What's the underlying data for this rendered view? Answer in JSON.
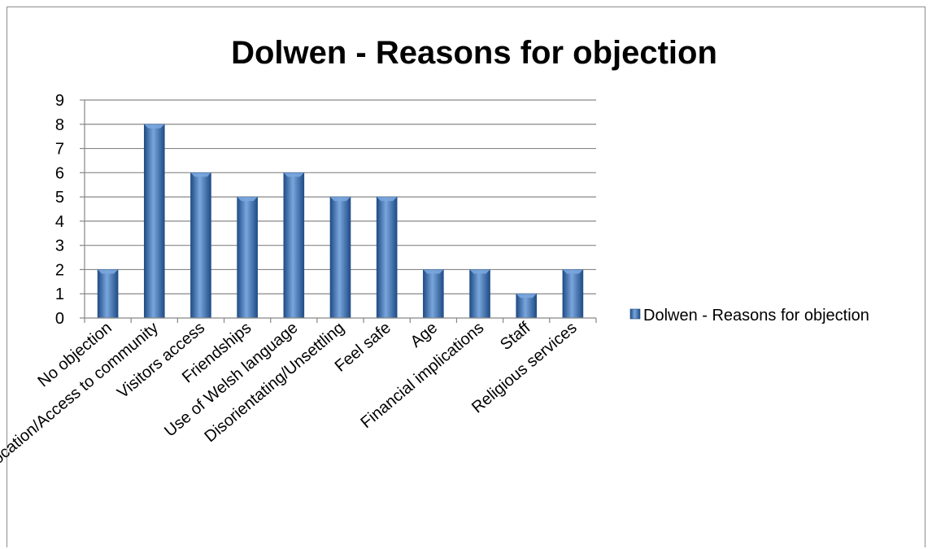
{
  "chart_data": {
    "type": "bar",
    "title": "Dolwen - Reasons for objection",
    "xlabel": "",
    "ylabel": "",
    "categories": [
      "No objection",
      "Location/Access to community",
      "Visitors access",
      "Friendships",
      "Use of Welsh language",
      "Disorientating/Unsettling",
      "Feel safe",
      "Age",
      "Financial implications",
      "Staff",
      "Religious services"
    ],
    "series": [
      {
        "name": "Dolwen - Reasons for objection",
        "values": [
          2,
          8,
          6,
          5,
          6,
          5,
          5,
          2,
          2,
          1,
          2
        ]
      }
    ],
    "ylim": [
      0,
      9
    ],
    "yticks": [
      "0",
      "1",
      "2",
      "3",
      "4",
      "5",
      "6",
      "7",
      "8",
      "9"
    ],
    "grid": true,
    "legend": "right",
    "colors": {
      "bar": "#3f74b8",
      "bar_dark": "#1f4c86",
      "bar_light": "#7aa6dd",
      "grid": "#878787"
    }
  }
}
